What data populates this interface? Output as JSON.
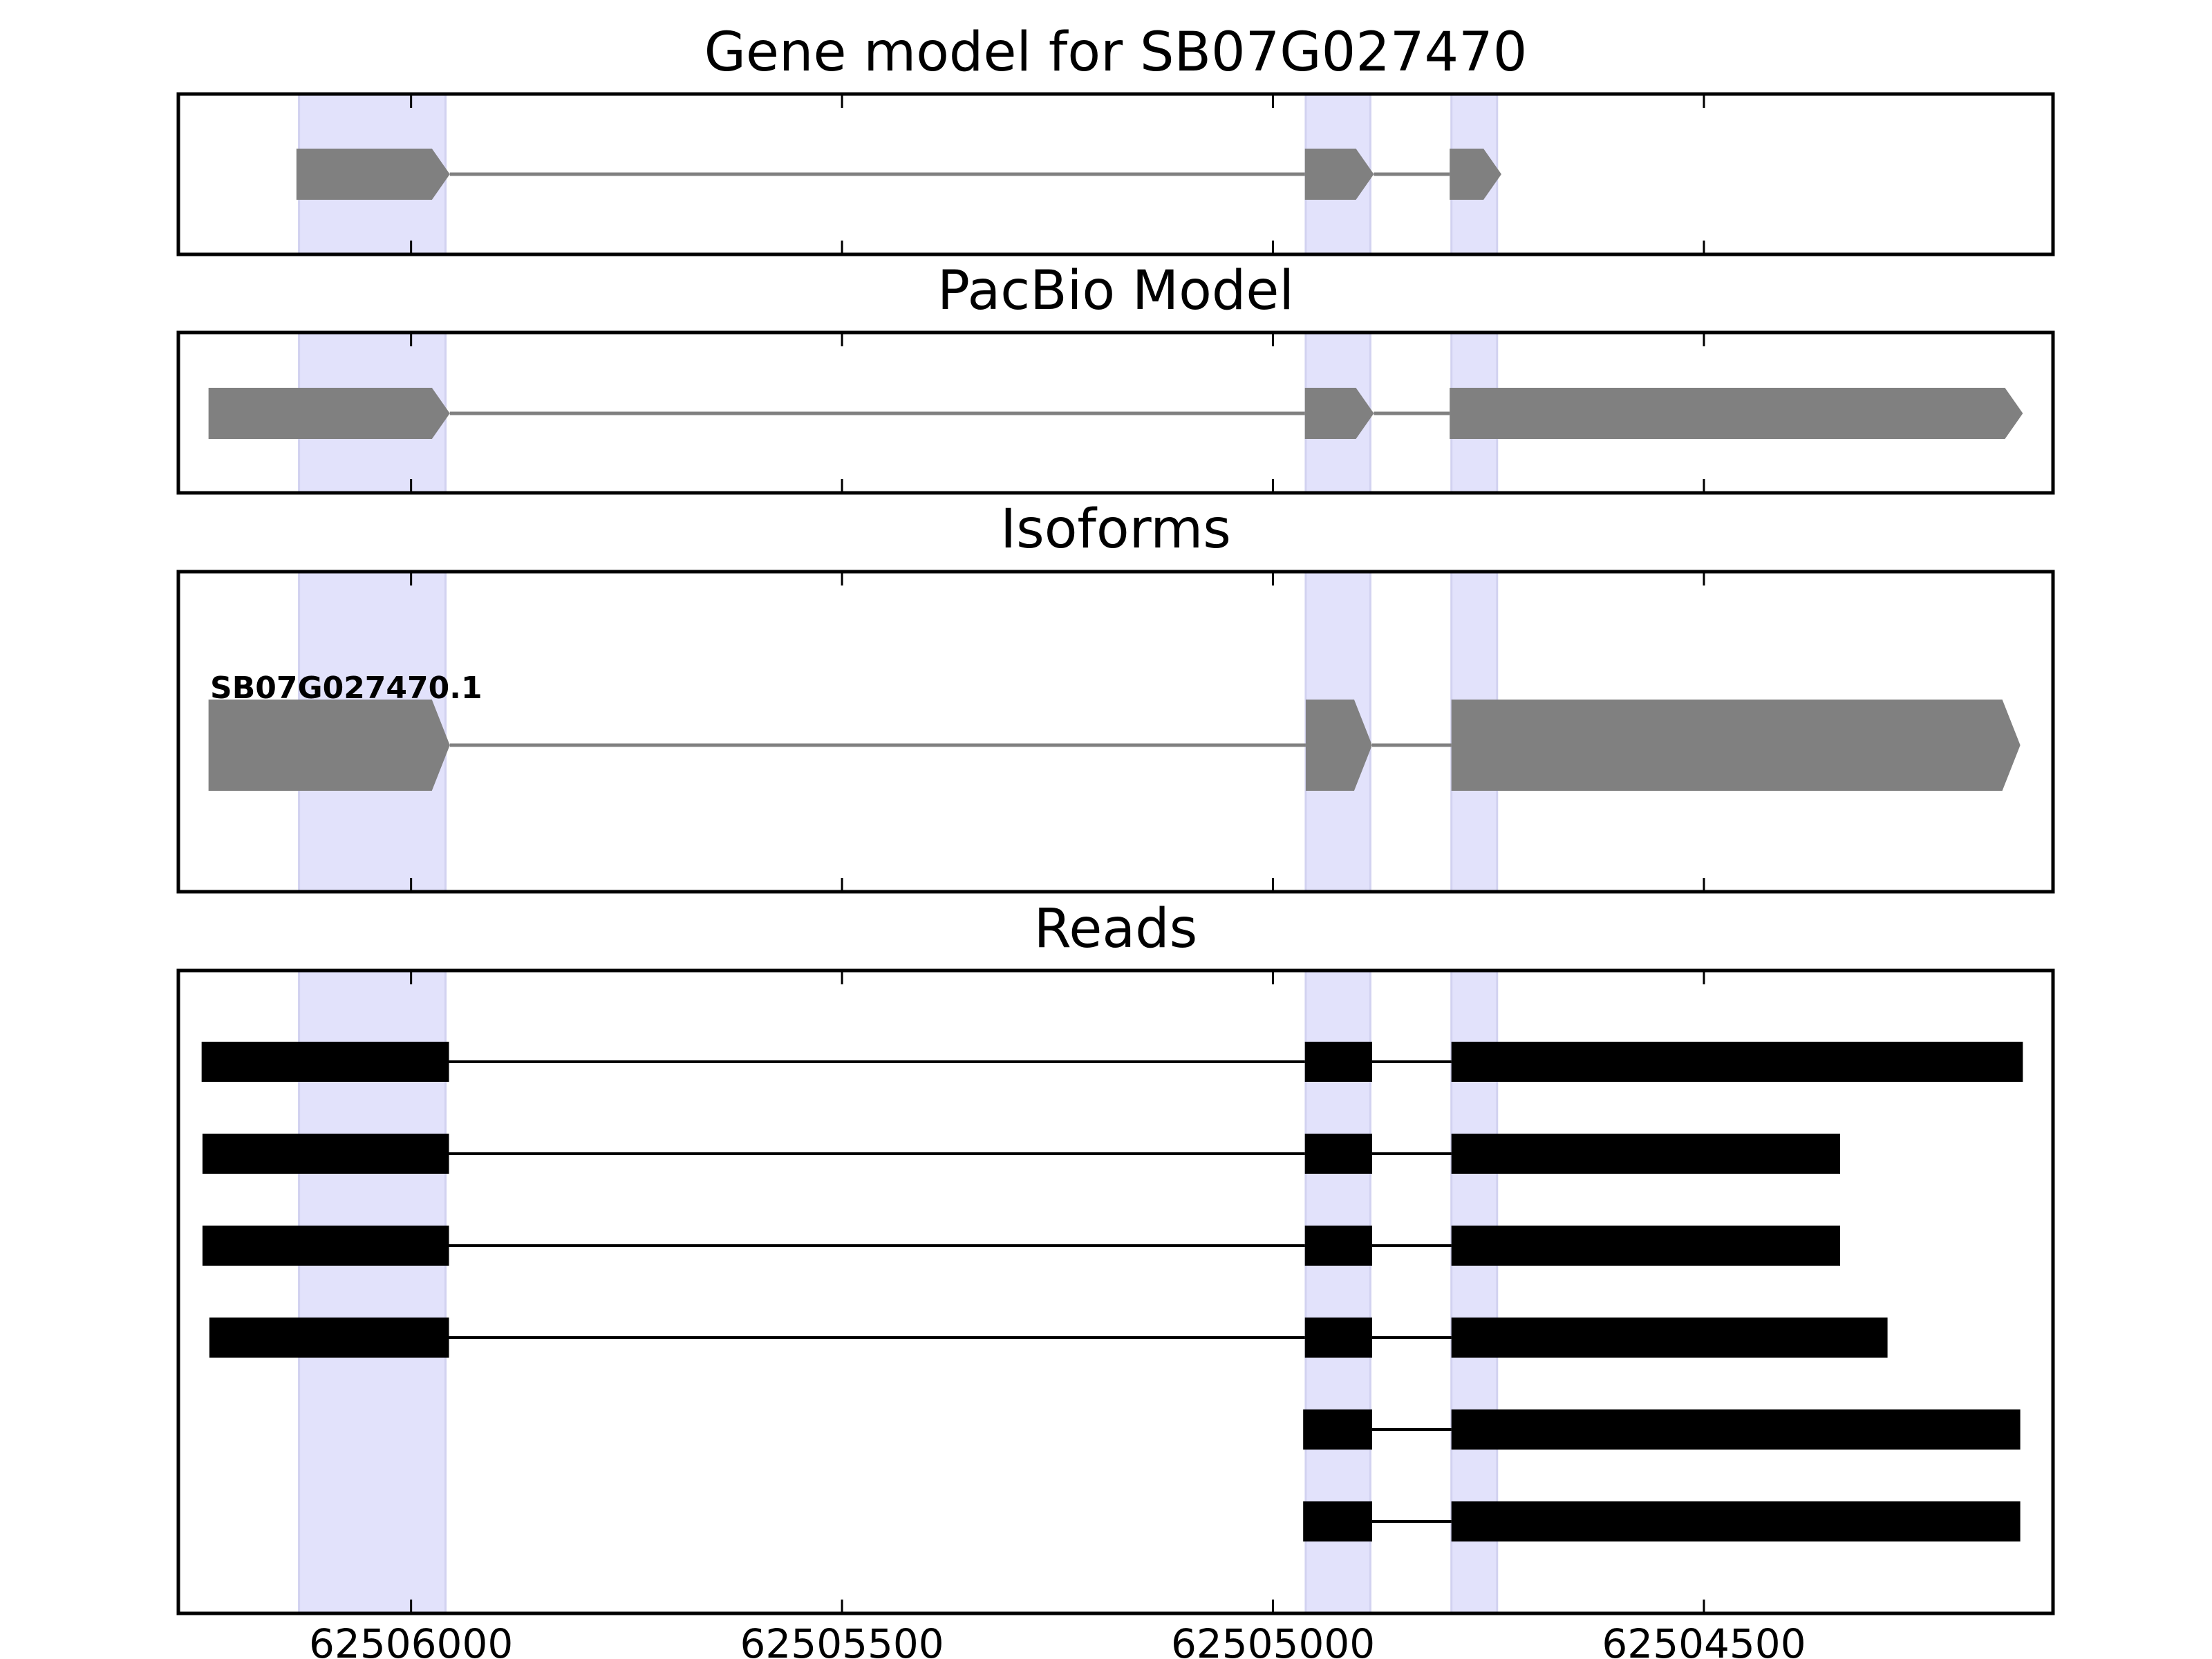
{
  "chart_data": {
    "type": "gene-model-tracks",
    "x_axis": {
      "reversed": true,
      "xlim": [
        62506270,
        62504095
      ],
      "ticks": [
        62506000,
        62505500,
        62505000,
        62504500
      ],
      "tick_labels": [
        "62506000",
        "62505500",
        "62505000",
        "62504500"
      ]
    },
    "highlight_color": "#e2e2fb",
    "highlights": [
      {
        "start": 62506130,
        "end": 62505960
      },
      {
        "start": 62504962,
        "end": 62504887
      },
      {
        "start": 62504793,
        "end": 62504740
      }
    ],
    "panels": [
      {
        "title": "Gene model for SB07G027470",
        "color": "#808080",
        "label": "",
        "exons": [
          {
            "start": 62506133,
            "end": 62505955
          },
          {
            "start": 62504963,
            "end": 62504883
          },
          {
            "start": 62504795,
            "end": 62504735
          }
        ]
      },
      {
        "title": "PacBio Model",
        "color": "#808080",
        "label": "",
        "exons": [
          {
            "start": 62506235,
            "end": 62505955
          },
          {
            "start": 62504963,
            "end": 62504883
          },
          {
            "start": 62504795,
            "end": 62504130
          }
        ]
      },
      {
        "title": "Isoforms",
        "color": "#808080",
        "label": "SB07G027470.1",
        "exons": [
          {
            "start": 62506235,
            "end": 62505955
          },
          {
            "start": 62504962,
            "end": 62504885
          },
          {
            "start": 62504793,
            "end": 62504133
          }
        ]
      },
      {
        "title": "Reads",
        "color": "#000000",
        "reads": [
          [
            {
              "start": 62506243,
              "end": 62505956
            },
            {
              "start": 62504963,
              "end": 62504885
            },
            {
              "start": 62504793,
              "end": 62504130
            }
          ],
          [
            {
              "start": 62506242,
              "end": 62505956
            },
            {
              "start": 62504963,
              "end": 62504885
            },
            {
              "start": 62504793,
              "end": 62504342
            }
          ],
          [
            {
              "start": 62506242,
              "end": 62505956
            },
            {
              "start": 62504963,
              "end": 62504885
            },
            {
              "start": 62504793,
              "end": 62504342
            }
          ],
          [
            {
              "start": 62506234,
              "end": 62505956
            },
            {
              "start": 62504963,
              "end": 62504885
            },
            {
              "start": 62504793,
              "end": 62504287
            }
          ],
          [
            {
              "start": 62504965,
              "end": 62504885
            },
            {
              "start": 62504793,
              "end": 62504133
            }
          ],
          [
            {
              "start": 62504965,
              "end": 62504885
            },
            {
              "start": 62504793,
              "end": 62504133
            }
          ]
        ]
      }
    ]
  }
}
